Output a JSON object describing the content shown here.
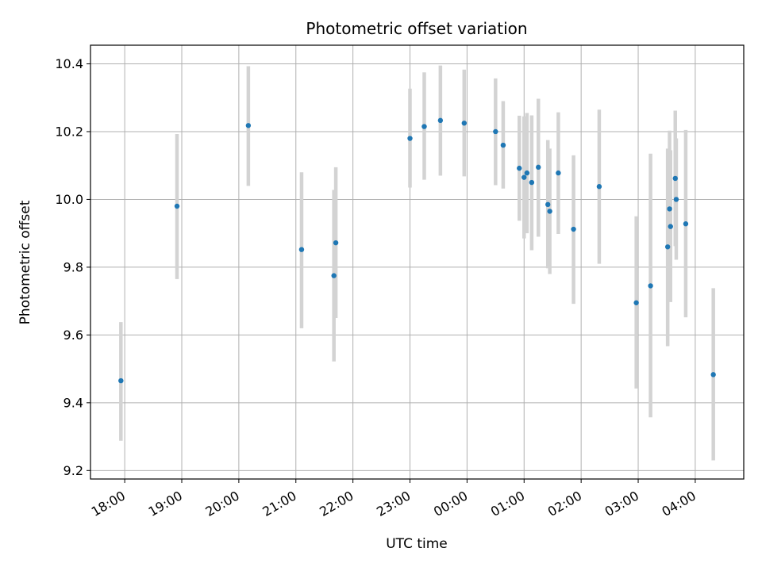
{
  "chart_data": {
    "type": "scatter",
    "title": "Photometric offset variation",
    "xlabel": "UTC time",
    "ylabel": "Photometric offset",
    "x_tick_labels": [
      "18:00",
      "19:00",
      "20:00",
      "21:00",
      "22:00",
      "23:00",
      "00:00",
      "01:00",
      "02:00",
      "03:00",
      "04:00"
    ],
    "y_tick_labels": [
      "9.2",
      "9.4",
      "9.6",
      "9.8",
      "10.0",
      "10.2",
      "10.4"
    ],
    "x_ticks_hours": [
      18,
      19,
      20,
      21,
      22,
      23,
      24,
      25,
      26,
      27,
      28
    ],
    "y_ticks": [
      9.2,
      9.4,
      9.6,
      9.8,
      10.0,
      10.2,
      10.4
    ],
    "xlim_hours": [
      17.4,
      28.85
    ],
    "ylim": [
      9.175,
      10.455
    ],
    "grid": true,
    "colors": {
      "marker": "#1f77b4",
      "errorbar": "#d3d3d3",
      "grid": "#b0b0b0"
    },
    "points": [
      {
        "time": "17:56",
        "y": 9.465,
        "low": 9.288,
        "high": 9.638
      },
      {
        "time": "18:55",
        "y": 9.98,
        "low": 9.765,
        "high": 10.193
      },
      {
        "time": "20:10",
        "y": 10.218,
        "low": 10.04,
        "high": 10.393
      },
      {
        "time": "21:06",
        "y": 9.852,
        "low": 9.62,
        "high": 10.08
      },
      {
        "time": "21:40",
        "y": 9.775,
        "low": 9.522,
        "high": 10.028
      },
      {
        "time": "21:42",
        "y": 9.872,
        "low": 9.65,
        "high": 10.095
      },
      {
        "time": "23:00",
        "y": 10.18,
        "low": 10.035,
        "high": 10.327
      },
      {
        "time": "23:15",
        "y": 10.215,
        "low": 10.058,
        "high": 10.375
      },
      {
        "time": "23:32",
        "y": 10.233,
        "low": 10.07,
        "high": 10.395
      },
      {
        "time": "23:57",
        "y": 10.225,
        "low": 10.068,
        "high": 10.383
      },
      {
        "time": "00:30",
        "y": 10.2,
        "low": 10.042,
        "high": 10.357
      },
      {
        "time": "00:38",
        "y": 10.16,
        "low": 10.032,
        "high": 10.29
      },
      {
        "time": "00:55",
        "y": 10.092,
        "low": 9.937,
        "high": 10.247
      },
      {
        "time": "01:00",
        "y": 10.065,
        "low": 9.885,
        "high": 10.245
      },
      {
        "time": "01:03",
        "y": 10.078,
        "low": 9.9,
        "high": 10.255
      },
      {
        "time": "01:08",
        "y": 10.05,
        "low": 9.85,
        "high": 10.248
      },
      {
        "time": "01:15",
        "y": 10.095,
        "low": 9.89,
        "high": 10.297
      },
      {
        "time": "01:25",
        "y": 9.985,
        "low": 9.797,
        "high": 10.175
      },
      {
        "time": "01:27",
        "y": 9.965,
        "low": 9.78,
        "high": 10.15
      },
      {
        "time": "01:36",
        "y": 10.078,
        "low": 9.898,
        "high": 10.257
      },
      {
        "time": "01:52",
        "y": 9.912,
        "low": 9.692,
        "high": 10.13
      },
      {
        "time": "02:19",
        "y": 10.038,
        "low": 9.81,
        "high": 10.265
      },
      {
        "time": "02:58",
        "y": 9.695,
        "low": 9.442,
        "high": 9.95
      },
      {
        "time": "03:13",
        "y": 9.745,
        "low": 9.357,
        "high": 10.135
      },
      {
        "time": "03:31",
        "y": 9.86,
        "low": 9.567,
        "high": 10.15
      },
      {
        "time": "03:33",
        "y": 9.972,
        "low": 9.742,
        "high": 10.203
      },
      {
        "time": "03:34",
        "y": 9.92,
        "low": 9.697,
        "high": 10.145
      },
      {
        "time": "03:39",
        "y": 10.062,
        "low": 9.862,
        "high": 10.262
      },
      {
        "time": "03:40",
        "y": 10.0,
        "low": 9.822,
        "high": 10.18
      },
      {
        "time": "03:50",
        "y": 9.928,
        "low": 9.652,
        "high": 10.205
      },
      {
        "time": "04:19",
        "y": 9.483,
        "low": 9.23,
        "high": 9.738
      }
    ]
  }
}
